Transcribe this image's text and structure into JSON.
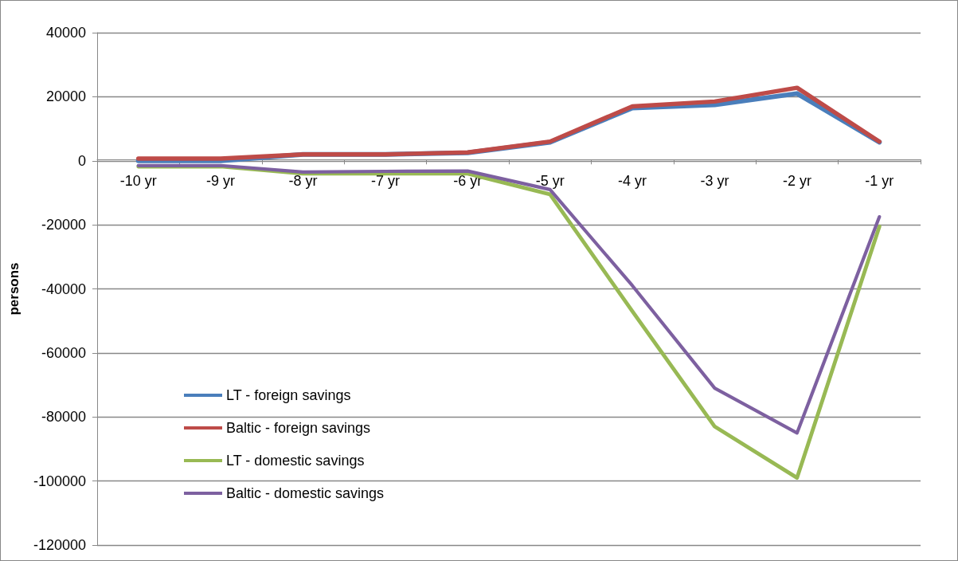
{
  "chart_data": {
    "type": "line",
    "ylabel": "persons",
    "categories": [
      "-10 yr",
      "-9 yr",
      "-8 yr",
      "-7 yr",
      "-6 yr",
      "-5 yr",
      "-4 yr",
      "-3 yr",
      "-2 yr",
      "-1 yr"
    ],
    "series": [
      {
        "name": "LT - foreign savings",
        "color": "#4a7ebb",
        "values": [
          0,
          0,
          2000,
          2000,
          2500,
          5800,
          16500,
          17500,
          21000,
          5800
        ]
      },
      {
        "name": "Baltic - foreign savings",
        "color": "#be4b48",
        "values": [
          700,
          700,
          2000,
          2000,
          2600,
          6000,
          17000,
          18500,
          22800,
          6000
        ]
      },
      {
        "name": "LT - domestic savings",
        "color": "#98b954",
        "values": [
          -1800,
          -1800,
          -4000,
          -4000,
          -4000,
          -10500,
          -47000,
          -83000,
          -99000,
          -20500
        ]
      },
      {
        "name": "Baltic - domestic savings",
        "color": "#7d60a0",
        "values": [
          -1500,
          -1500,
          -3500,
          -3300,
          -3200,
          -9000,
          -39000,
          -71000,
          -85000,
          -17500
        ]
      }
    ],
    "ylim": [
      -120000,
      40000
    ],
    "yticks": [
      -120000,
      -100000,
      -80000,
      -60000,
      -40000,
      -20000,
      0,
      20000,
      40000
    ],
    "grid": "y",
    "legend": "bottom left",
    "marker": "none",
    "line_style": "solid"
  }
}
